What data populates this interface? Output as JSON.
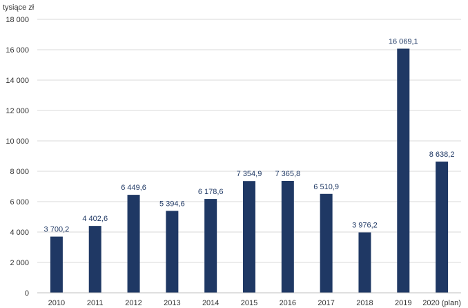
{
  "chart_data": {
    "type": "bar",
    "unit_label": "tysiące zł",
    "categories": [
      "2010",
      "2011",
      "2012",
      "2013",
      "2014",
      "2015",
      "2016",
      "2017",
      "2018",
      "2019",
      "2020 (plan)"
    ],
    "values": [
      3700.2,
      4402.6,
      6449.6,
      5394.6,
      6178.6,
      7354.9,
      7365.8,
      6510.9,
      3976.2,
      16069.1,
      8638.2
    ],
    "data_labels": [
      "3 700,2",
      "4 402,6",
      "6 449,6",
      "5 394,6",
      "6 178,6",
      "7 354,9",
      "7 365,8",
      "6 510,9",
      "3 976,2",
      "16 069,1",
      "8 638,2"
    ],
    "y_ticks": [
      0,
      2000,
      4000,
      6000,
      8000,
      10000,
      12000,
      14000,
      16000,
      18000
    ],
    "y_tick_labels": [
      "0",
      "2 000",
      "4 000",
      "6 000",
      "8 000",
      "10 000",
      "12 000",
      "14 000",
      "16 000",
      "18 000"
    ],
    "ylim": [
      0,
      18000
    ],
    "grid": true,
    "bar_color": "#1f3864"
  }
}
